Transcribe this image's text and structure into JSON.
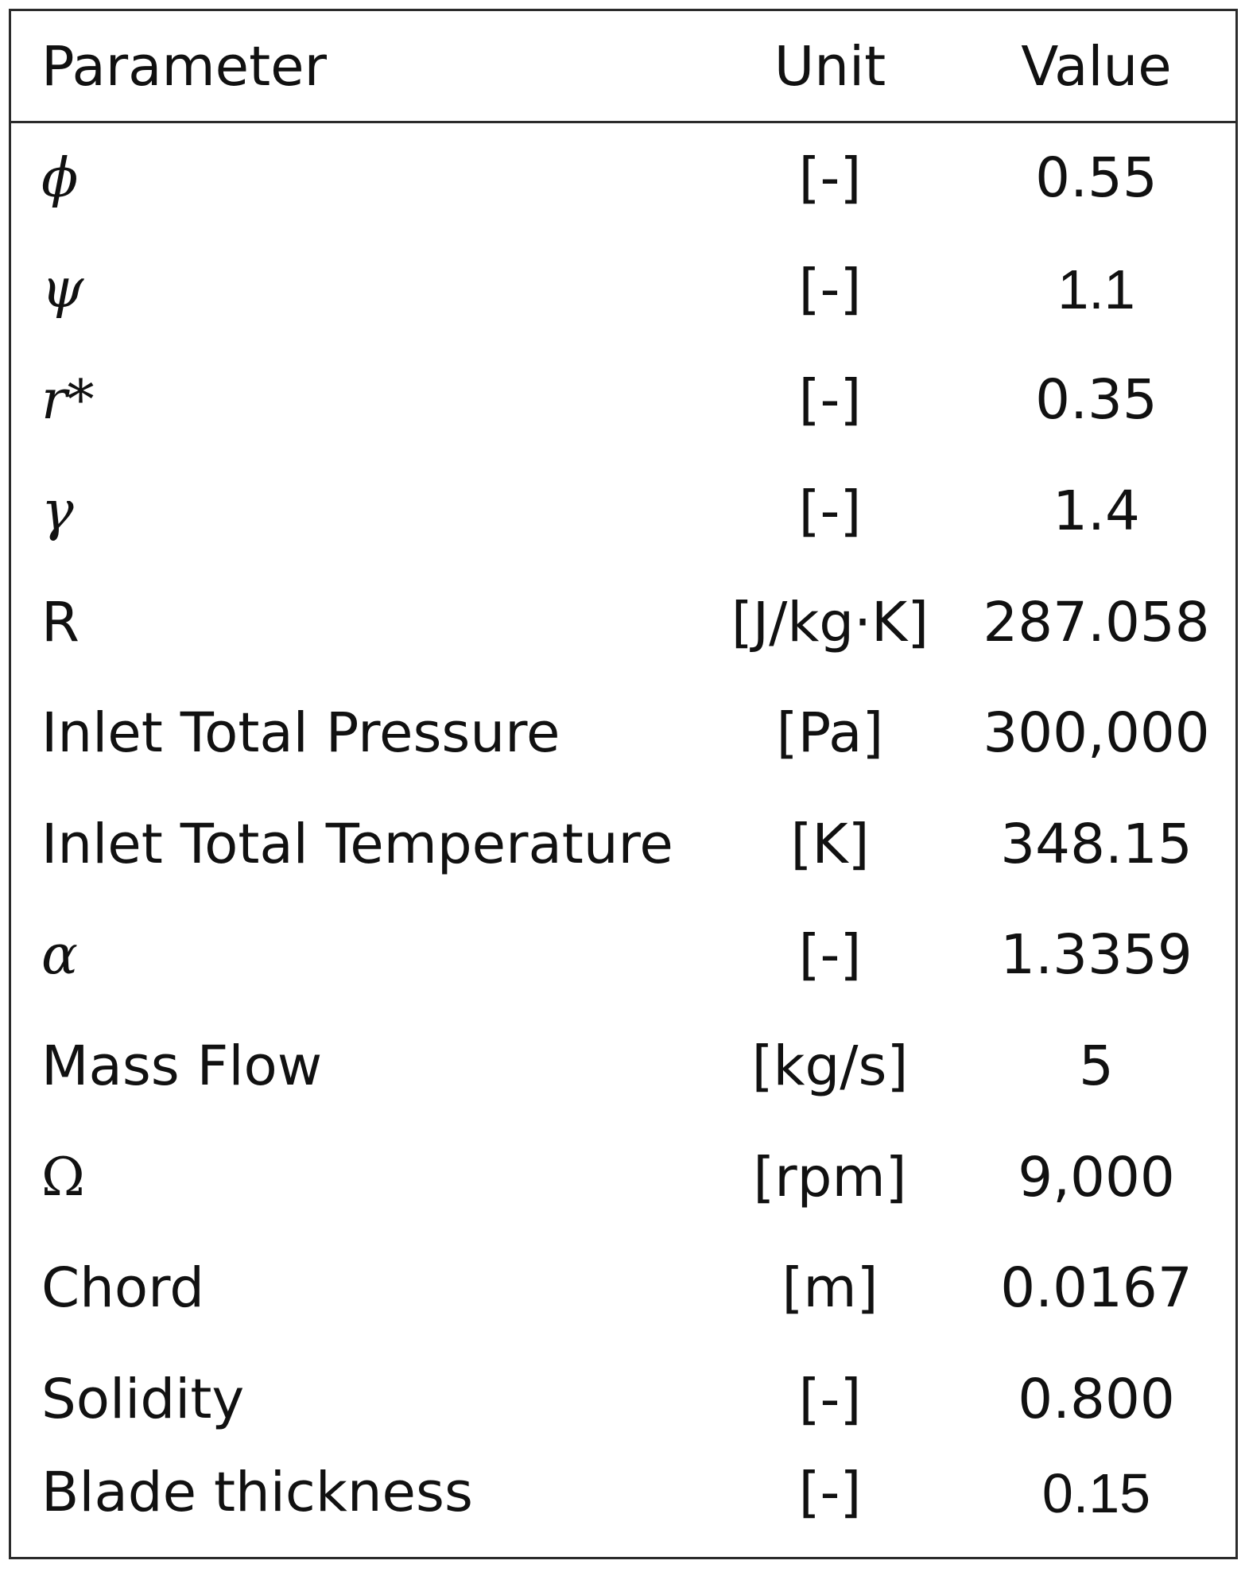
{
  "table": {
    "headers": {
      "parameter": "Parameter",
      "unit": "Unit",
      "value": "Value"
    },
    "rows": [
      {
        "parameter": "ϕ",
        "unit": "[-]",
        "value": "0.55",
        "style": "italic"
      },
      {
        "parameter": "ψ",
        "unit": "[-]",
        "value": "1.1",
        "style": "italic"
      },
      {
        "parameter": "r*",
        "unit": "[-]",
        "value": "0.35",
        "style": "italic"
      },
      {
        "parameter": "γ",
        "unit": "[-]",
        "value": "1.4",
        "style": "italic"
      },
      {
        "parameter": "R",
        "unit": "[J/kg·K]",
        "value": "287.058",
        "style": "normal"
      },
      {
        "parameter": "Inlet Total Pressure",
        "unit": "[Pa]",
        "value": "300,000",
        "style": "normal"
      },
      {
        "parameter": "Inlet Total Temperature",
        "unit": "[K]",
        "value": "348.15",
        "style": "normal"
      },
      {
        "parameter": "α",
        "unit": "[-]",
        "value": "1.3359",
        "style": "italic"
      },
      {
        "parameter": "Mass Flow",
        "unit": "[kg/s]",
        "value": "5",
        "style": "normal"
      },
      {
        "parameter": "Ω",
        "unit": "[rpm]",
        "value": "9,000",
        "style": "upright-symbol"
      },
      {
        "parameter": "Chord",
        "unit": "[m]",
        "value": "0.0167",
        "style": "normal"
      },
      {
        "parameter": "Solidity",
        "unit": "[-]",
        "value": "0.800",
        "style": "normal"
      },
      {
        "parameter": "Blade thickness",
        "unit": "[-]",
        "value": "0.15",
        "style": "normal"
      }
    ]
  }
}
